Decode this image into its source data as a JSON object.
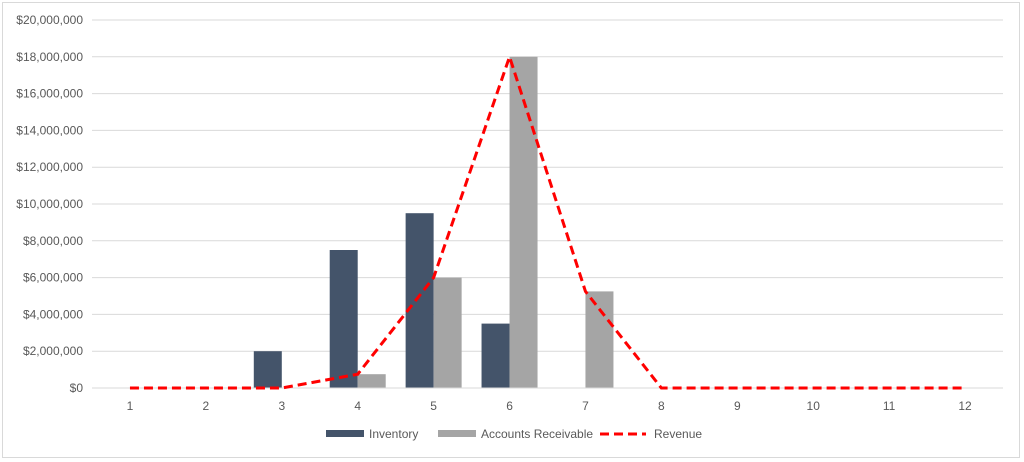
{
  "chart_data": {
    "type": "bar",
    "categories": [
      "1",
      "2",
      "3",
      "4",
      "5",
      "6",
      "7",
      "8",
      "9",
      "10",
      "11",
      "12"
    ],
    "series": [
      {
        "name": "Inventory",
        "kind": "bar",
        "color": "#44546a",
        "values": [
          0,
          0,
          2000000,
          7500000,
          9500000,
          3500000,
          0,
          0,
          0,
          0,
          0,
          0
        ]
      },
      {
        "name": "Accounts Receivable",
        "kind": "bar",
        "color": "#a5a5a5",
        "values": [
          0,
          0,
          0,
          750000,
          6000000,
          18000000,
          5250000,
          0,
          0,
          0,
          0,
          0
        ]
      },
      {
        "name": "Revenue",
        "kind": "line",
        "style": "dashed",
        "color": "#ff0000",
        "values": [
          0,
          0,
          0,
          750000,
          6000000,
          18000000,
          5250000,
          0,
          0,
          0,
          0,
          0
        ]
      }
    ],
    "ylim": [
      0,
      20000000
    ],
    "y_ticks": [
      0,
      2000000,
      4000000,
      6000000,
      8000000,
      10000000,
      12000000,
      14000000,
      16000000,
      18000000,
      20000000
    ],
    "y_tick_labels": [
      "$0",
      "$2,000,000",
      "$4,000,000",
      "$6,000,000",
      "$8,000,000",
      "$10,000,000",
      "$12,000,000",
      "$14,000,000",
      "$16,000,000",
      "$18,000,000",
      "$20,000,000"
    ],
    "grid": true,
    "legend_position": "bottom",
    "title": "",
    "xlabel": "",
    "ylabel": ""
  }
}
